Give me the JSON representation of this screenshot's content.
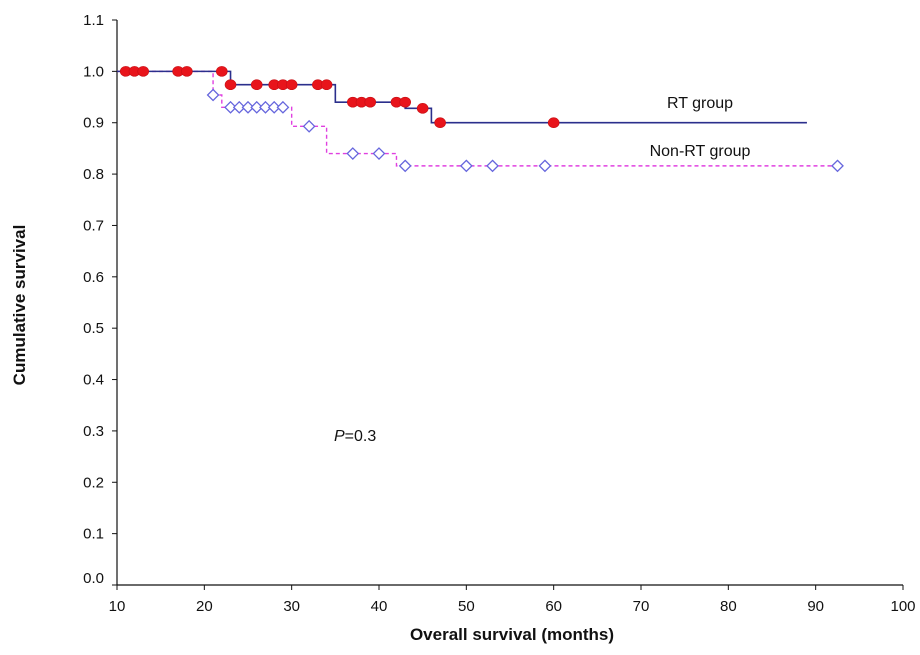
{
  "chart_data": {
    "type": "line",
    "title": "",
    "xlabel": "Overall survival (months)",
    "ylabel": "Cumulative survival",
    "xlim": [
      10,
      100
    ],
    "ylim": [
      0.0,
      1.1
    ],
    "x_ticks": [
      "10",
      "20",
      "30",
      "40",
      "50",
      "60",
      "70",
      "80",
      "90",
      "100"
    ],
    "y_ticks": [
      "0.0",
      "0.1",
      "0.2",
      "0.3",
      "0.4",
      "0.5",
      "0.6",
      "0.7",
      "0.8",
      "0.9",
      "1.0",
      "1.1"
    ],
    "grid": false,
    "colors": {
      "axis": "#111111",
      "rt": "#2b2f8c",
      "rt_marker": "#e8141b",
      "nonrt": "#e040e0",
      "nonrt_marker": "#6666dd"
    },
    "series": [
      {
        "name": "RT group",
        "line_style": "solid",
        "marker": "filled-circle",
        "steps": [
          [
            10,
            1.0
          ],
          [
            23,
            0.974
          ],
          [
            35,
            0.94
          ],
          [
            43,
            0.928
          ],
          [
            46,
            0.9
          ],
          [
            89,
            0.9
          ]
        ],
        "censored": [
          [
            11,
            1.0
          ],
          [
            12,
            1.0
          ],
          [
            13,
            1.0
          ],
          [
            17,
            1.0
          ],
          [
            18,
            1.0
          ],
          [
            22,
            1.0
          ],
          [
            23,
            0.974
          ],
          [
            26,
            0.974
          ],
          [
            28,
            0.974
          ],
          [
            29,
            0.974
          ],
          [
            30,
            0.974
          ],
          [
            33,
            0.974
          ],
          [
            34,
            0.974
          ],
          [
            37,
            0.94
          ],
          [
            38,
            0.94
          ],
          [
            39,
            0.94
          ],
          [
            42,
            0.94
          ],
          [
            43,
            0.94
          ],
          [
            45,
            0.928
          ],
          [
            47,
            0.9
          ],
          [
            60,
            0.9
          ]
        ]
      },
      {
        "name": "Non-RT group",
        "line_style": "dashed",
        "marker": "open-diamond",
        "steps": [
          [
            10,
            1.0
          ],
          [
            21,
            0.954
          ],
          [
            22,
            0.93
          ],
          [
            30,
            0.893
          ],
          [
            34,
            0.84
          ],
          [
            42,
            0.816
          ],
          [
            92.5,
            0.816
          ]
        ],
        "censored": [
          [
            21,
            0.954
          ],
          [
            23,
            0.93
          ],
          [
            24,
            0.93
          ],
          [
            25,
            0.93
          ],
          [
            26,
            0.93
          ],
          [
            27,
            0.93
          ],
          [
            28,
            0.93
          ],
          [
            29,
            0.93
          ],
          [
            32,
            0.893
          ],
          [
            37,
            0.84
          ],
          [
            40,
            0.84
          ],
          [
            43,
            0.816
          ],
          [
            50,
            0.816
          ],
          [
            53,
            0.816
          ],
          [
            59,
            0.816
          ],
          [
            92.5,
            0.816
          ]
        ]
      }
    ],
    "annotations": {
      "p_symbol": "P",
      "p_value": "=0.3"
    }
  }
}
